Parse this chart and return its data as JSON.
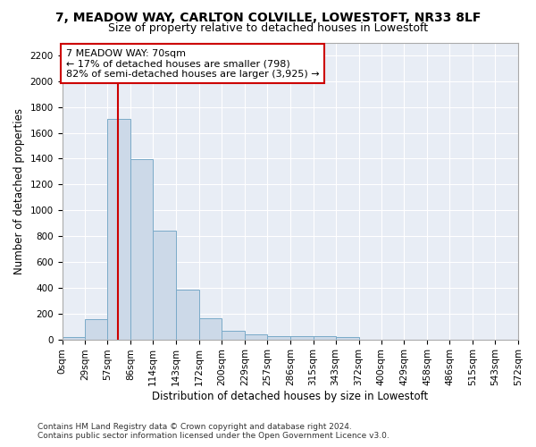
{
  "title": "7, MEADOW WAY, CARLTON COLVILLE, LOWESTOFT, NR33 8LF",
  "subtitle": "Size of property relative to detached houses in Lowestoft",
  "xlabel": "Distribution of detached houses by size in Lowestoft",
  "ylabel": "Number of detached properties",
  "bar_color": "#ccd9e8",
  "bar_edge_color": "#7aaac8",
  "background_color": "#e8edf5",
  "grid_color": "#ffffff",
  "annotation_text": "7 MEADOW WAY: 70sqm\n← 17% of detached houses are smaller (798)\n82% of semi-detached houses are larger (3,925) →",
  "annotation_box_facecolor": "#ffffff",
  "annotation_box_edgecolor": "#cc0000",
  "property_line_x": 70,
  "property_line_color": "#cc0000",
  "bin_edges": [
    0,
    29,
    57,
    86,
    114,
    143,
    172,
    200,
    229,
    257,
    286,
    315,
    343,
    372,
    400,
    429,
    458,
    486,
    515,
    543,
    572
  ],
  "bar_heights": [
    20,
    155,
    1710,
    1395,
    840,
    385,
    165,
    65,
    38,
    28,
    28,
    22,
    18,
    0,
    0,
    0,
    0,
    0,
    0,
    0
  ],
  "ylim": [
    0,
    2300
  ],
  "yticks": [
    0,
    200,
    400,
    600,
    800,
    1000,
    1200,
    1400,
    1600,
    1800,
    2000,
    2200
  ],
  "footer_text": "Contains HM Land Registry data © Crown copyright and database right 2024.\nContains public sector information licensed under the Open Government Licence v3.0.",
  "title_fontsize": 10,
  "subtitle_fontsize": 9,
  "axis_label_fontsize": 8.5,
  "tick_label_fontsize": 7.5,
  "annotation_fontsize": 8,
  "footer_fontsize": 6.5
}
